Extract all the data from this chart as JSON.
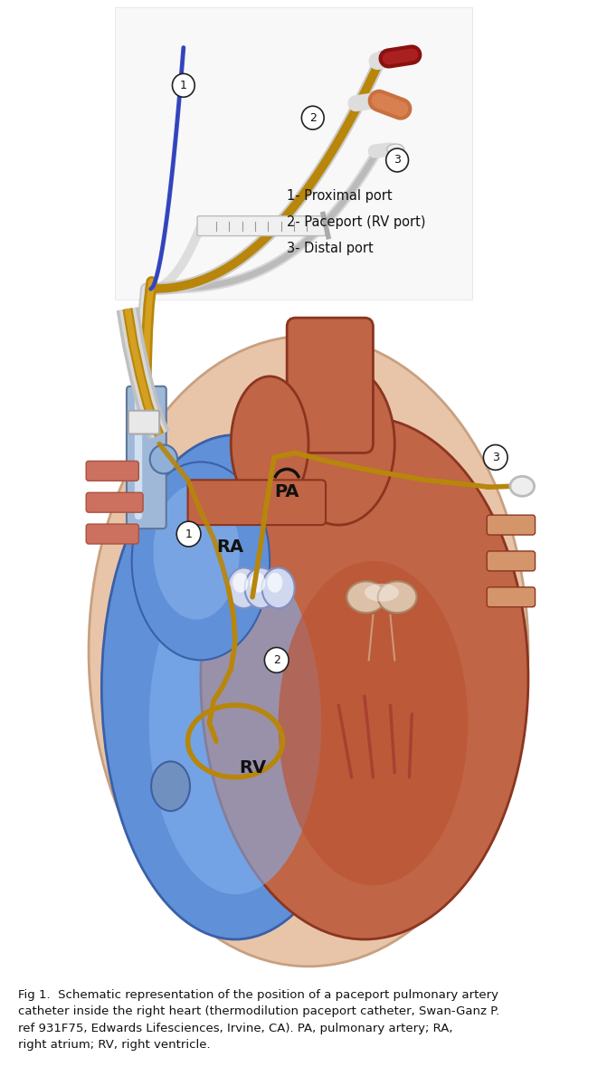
{
  "figure_width": 6.71,
  "figure_height": 12.0,
  "dpi": 100,
  "bg": "#ffffff",
  "caption": "Fig 1.  Schematic representation of the position of a paceport pulmonary artery\ncatheter inside the right heart (thermodilution paceport catheter, Swan-Ganz P.\nref 931F75, Edwards Lifesciences, Irvine, CA). PA, pulmonary artery; RA,\nright atrium; RV, right ventricle.",
  "lbl1": "1- Proximal port",
  "lbl2": "2- Paceport (RV port)",
  "lbl3": "3- Distal port",
  "gold": "#b8860b",
  "blue_cath": "#3344cc",
  "gray_cath": "#cccccc",
  "heart_blue_dark": "#3a5fa0",
  "heart_blue_mid": "#5a80c8",
  "heart_blue_light": "#7aafee",
  "heart_red_dark": "#8b3520",
  "heart_red_mid": "#c06545",
  "heart_red_light": "#d4956a",
  "heart_skin": "#e8c5a8",
  "photo_bg": "#f4f4f4"
}
